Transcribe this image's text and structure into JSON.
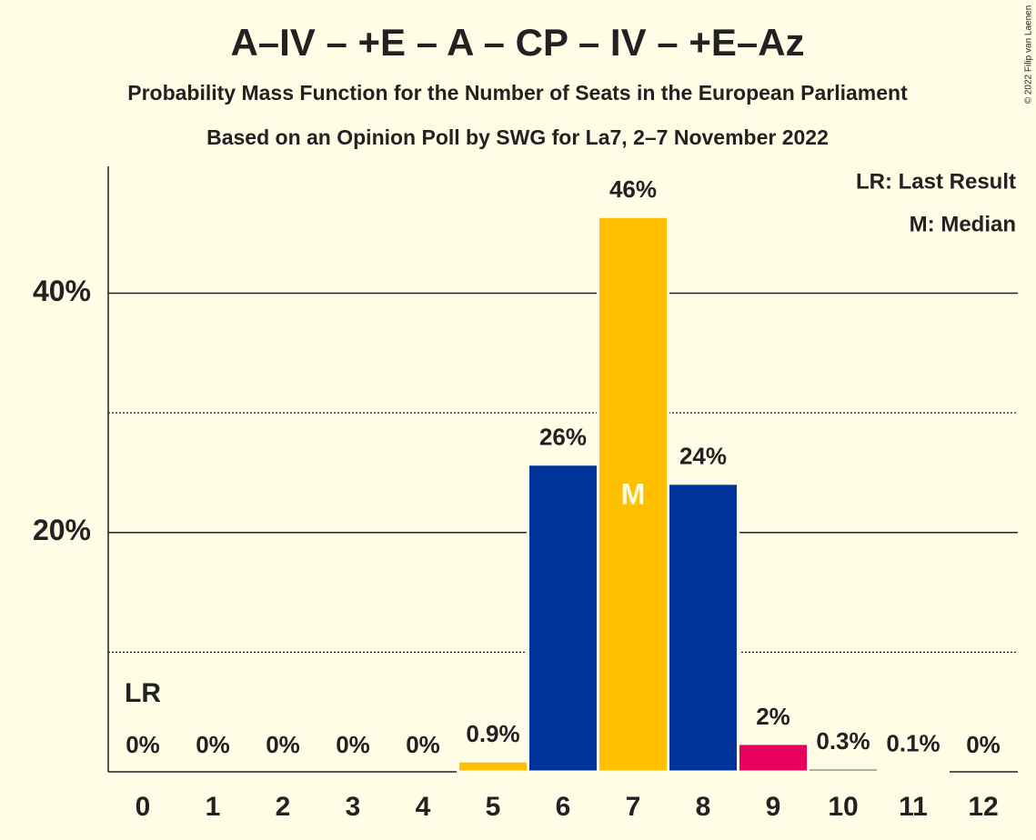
{
  "chart_data": {
    "type": "bar",
    "title": "A–IV – +E – A – CP – IV – +E–Az",
    "subtitle": "Probability Mass Function for the Number of Seats in the European Parliament",
    "subtitle2": "Based on an Opinion Poll by SWG for La7, 2–7 November 2022",
    "copyright": "© 2022 Filip van Laenen",
    "categories": [
      "0",
      "1",
      "2",
      "3",
      "4",
      "5",
      "6",
      "7",
      "8",
      "9",
      "10",
      "11",
      "12"
    ],
    "values": [
      0,
      0,
      0,
      0,
      0,
      0.9,
      25.7,
      46.4,
      24.1,
      2.36,
      0.3,
      0.1,
      0
    ],
    "value_labels": [
      "0%",
      "0%",
      "0%",
      "0%",
      "0%",
      "0.9%",
      "26%",
      "46%",
      "24%",
      "2%",
      "0.3%",
      "0.1%",
      "0%"
    ],
    "colors": [
      "#003399",
      "#003399",
      "#003399",
      "#003399",
      "#003399",
      "#ffc000",
      "#003399",
      "#ffc000",
      "#003399",
      "#e8005e",
      "#555555",
      "#555555",
      "#555555"
    ],
    "ylim": [
      0,
      50.6
    ],
    "yticks": [
      {
        "value": 20,
        "label": "20%"
      },
      {
        "value": 40,
        "label": "40%"
      }
    ],
    "minor_yticks": [
      10,
      30
    ],
    "grid": true,
    "markers": {
      "last_result": {
        "label": "LR",
        "category": "0"
      },
      "median": {
        "label": "M",
        "category": "7"
      }
    },
    "legend": [
      "LR: Last Result",
      "M: Median"
    ]
  }
}
